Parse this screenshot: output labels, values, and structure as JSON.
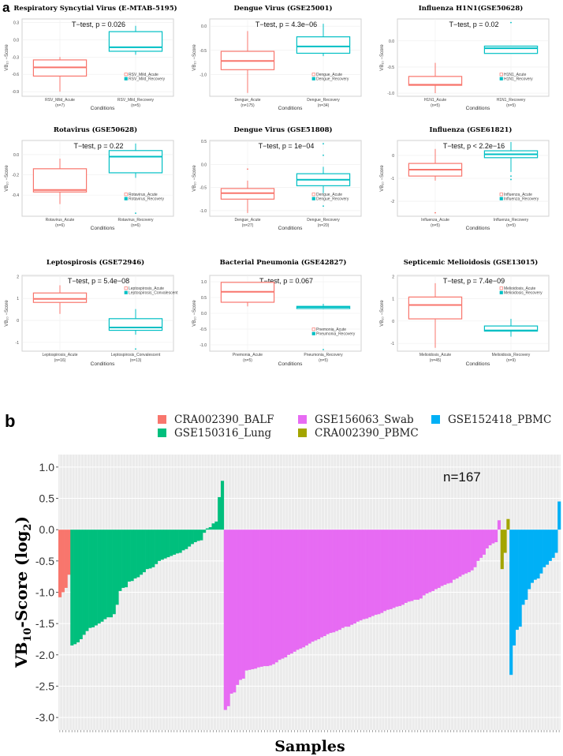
{
  "panel_labels": {
    "a": "a",
    "b": "b"
  },
  "colors": {
    "acute": "#F8766D",
    "recovery": "#00BFC4",
    "panel_bg": "#EBEBEB",
    "box_panel_bg": "#FFFFFF"
  },
  "chart_data": [
    {
      "type": "box",
      "title": "Respiratory Syncytial Virus (E-MTAB-5195)",
      "test": "T−test, p = 0.026",
      "ylabel": "VB₁₀ −Score",
      "xlabel": "Conditions",
      "yticks": [
        0.3,
        0.0,
        -0.3,
        -0.6,
        -0.9
      ],
      "ytick_labels": [
        "0.3",
        "0.0",
        "-0.3",
        "-0.6",
        "-0.9"
      ],
      "ylim": [
        -0.98,
        0.36
      ],
      "legend": "bottom-right",
      "groups": [
        {
          "name": "RSV_Mild_Acute",
          "n": "(n=7)",
          "min": -0.9,
          "q1": -0.63,
          "median": -0.48,
          "q3": -0.35,
          "max": -0.3,
          "outliers": []
        },
        {
          "name": "RSV_Mild_Recovery",
          "n": "(n=5)",
          "min": -0.26,
          "q1": -0.2,
          "median": -0.13,
          "q3": 0.14,
          "max": 0.24,
          "outliers": []
        }
      ]
    },
    {
      "type": "box",
      "title": "Dengue Virus (GSE25001)",
      "test": "T−test, p = 4.3e−06",
      "ylabel": "VB₁₀ −Score",
      "xlabel": "Conditions",
      "yticks": [
        0.0,
        -0.5,
        -1.0
      ],
      "ytick_labels": [
        "0.0",
        "-0.5",
        "-1.0"
      ],
      "ylim": [
        -1.45,
        0.15
      ],
      "legend": "bottom-right",
      "groups": [
        {
          "name": "Dengue_Acute",
          "n": "(n=175)",
          "min": -1.38,
          "q1": -0.9,
          "median": -0.72,
          "q3": -0.52,
          "max": -0.1,
          "outliers": []
        },
        {
          "name": "Dengue_Recovery",
          "n": "(n=34)",
          "min": -0.62,
          "q1": -0.56,
          "median": -0.42,
          "q3": -0.22,
          "max": 0.05,
          "outliers": []
        }
      ]
    },
    {
      "type": "box",
      "title": "Influenza H1N1(GSE50628)",
      "test": "T−test, p = 0.02",
      "ylabel": "VB₁₀ −Score",
      "xlabel": "Conditions",
      "yticks": [
        0.0,
        -0.5,
        -1.0
      ],
      "ytick_labels": [
        "0.0",
        "-0.5",
        "-1.0"
      ],
      "ylim": [
        -1.06,
        0.42
      ],
      "legend": "bottom-right",
      "groups": [
        {
          "name": "H1N1_Acute",
          "n": "(n=5)",
          "min": -1.0,
          "q1": -0.85,
          "median": -0.84,
          "q3": -0.68,
          "max": -0.42,
          "outliers": []
        },
        {
          "name": "H1N1_Recovery",
          "n": "(n=5)",
          "min": -0.24,
          "q1": -0.24,
          "median": -0.14,
          "q3": -0.1,
          "max": -0.1,
          "outliers": [
            0.35
          ]
        }
      ]
    },
    {
      "type": "box",
      "title": "Rotavirus (GSE50628)",
      "test": "T−test, p = 0.22",
      "ylabel": "VB₁₀ −Score",
      "xlabel": "Conditions",
      "yticks": [
        0.0,
        -0.2,
        -0.4
      ],
      "ytick_labels": [
        "0.0",
        "-0.2",
        "-0.4"
      ],
      "ylim": [
        -0.61,
        0.14
      ],
      "legend": "bottom-right",
      "groups": [
        {
          "name": "Rotavirus_Acute",
          "n": "(n=6)",
          "min": -0.49,
          "q1": -0.37,
          "median": -0.35,
          "q3": -0.14,
          "max": -0.04,
          "outliers": []
        },
        {
          "name": "Rotavirus_Recovery",
          "n": "(n=6)",
          "min": -0.23,
          "q1": -0.18,
          "median": -0.02,
          "q3": 0.04,
          "max": 0.11,
          "outliers": [
            -0.58
          ]
        }
      ]
    },
    {
      "type": "box",
      "title": "Dengue Virus (GSE51808)",
      "test": "T−test, p = 1e−04",
      "ylabel": "VB₁₀ −Score",
      "xlabel": "Conditions",
      "yticks": [
        0.5,
        0.0,
        -0.5,
        -1.0
      ],
      "ytick_labels": [
        "0.5",
        "0.0",
        "-0.5",
        "-1.0"
      ],
      "ylim": [
        -1.12,
        0.52
      ],
      "legend": "bottom-right",
      "groups": [
        {
          "name": "Dengue_Acute",
          "n": "(n=27)",
          "min": -1.05,
          "q1": -0.75,
          "median": -0.62,
          "q3": -0.52,
          "max": -0.35,
          "outliers": [
            -0.1
          ]
        },
        {
          "name": "Dengue_Recovery",
          "n": "(n=20)",
          "min": -0.62,
          "q1": -0.46,
          "median": -0.33,
          "q3": -0.2,
          "max": -0.05,
          "outliers": [
            0.2,
            0.45,
            -0.9
          ]
        }
      ]
    },
    {
      "type": "box",
      "title": "Influenza (GSE61821)",
      "test": "T−test, p < 2.2e−16",
      "ylabel": "VB₁₀ −Score",
      "xlabel": "Conditions",
      "yticks": [
        0,
        -1,
        -2
      ],
      "ytick_labels": [
        "0",
        "-1",
        "-2"
      ],
      "ylim": [
        -2.65,
        0.65
      ],
      "legend": "bottom-right",
      "groups": [
        {
          "name": "Influenza_Acute",
          "n": "(n=5)",
          "min": -1.1,
          "q1": -0.9,
          "median": -0.62,
          "q3": -0.35,
          "max": 0.28,
          "outliers": [
            -2.5
          ]
        },
        {
          "name": "Influenza_Recovery",
          "n": "(n=5)",
          "min": -0.72,
          "q1": -0.1,
          "median": 0.05,
          "q3": 0.2,
          "max": 0.58,
          "outliers": [
            -0.9,
            -1.05
          ]
        }
      ]
    },
    {
      "type": "box",
      "title": "Leptospirosis (GSE72946)",
      "test": "T−test, p = 5.4e−08",
      "ylabel": "VB₁₀ −Score",
      "xlabel": "Conditions",
      "yticks": [
        2,
        1,
        0,
        -1
      ],
      "ytick_labels": [
        "2",
        "1",
        "0",
        "-1"
      ],
      "ylim": [
        -1.4,
        2.05
      ],
      "legend": "top-right",
      "groups": [
        {
          "name": "Leptospirosis_Acute",
          "n": "(n=16)",
          "min": 0.3,
          "q1": 0.82,
          "median": 0.98,
          "q3": 1.25,
          "max": 1.6,
          "outliers": []
        },
        {
          "name": "Leptospirosis_Convalescent",
          "n": "(n=13)",
          "min": -0.65,
          "q1": -0.45,
          "median": -0.32,
          "q3": 0.08,
          "max": 0.52,
          "outliers": [
            -1.3
          ]
        }
      ]
    },
    {
      "type": "box",
      "title": "Bacterial Pneumonia (GSE42827)",
      "test": "T−test, p = 0.067",
      "ylabel": "VB₁₀ −Score",
      "xlabel": "Conditions",
      "yticks": [
        1.0,
        0.5,
        0.0,
        -0.5,
        -1.0
      ],
      "ytick_labels": [
        "1.0",
        "0.5",
        "0.0",
        "-0.5",
        "-1.0"
      ],
      "ylim": [
        -1.2,
        1.2
      ],
      "legend": "bottom-right",
      "groups": [
        {
          "name": "Pnemonia_Acute",
          "n": "(n=5)",
          "min": 0.22,
          "q1": 0.35,
          "median": 0.68,
          "q3": 0.98,
          "max": 0.98,
          "outliers": []
        },
        {
          "name": "Pneumonia_Recovery",
          "n": "(n=5)",
          "min": 0.13,
          "q1": 0.15,
          "median": 0.2,
          "q3": 0.22,
          "max": 0.3,
          "outliers": [
            -1.15
          ]
        }
      ]
    },
    {
      "type": "box",
      "title": "Septicemic Melioidosis (GSE13015)",
      "test": "T−test, p = 7.4e−09",
      "ylabel": "VB₁₀ −Score",
      "xlabel": "Conditions",
      "yticks": [
        2,
        1,
        0,
        -1
      ],
      "ytick_labels": [
        "2",
        "1",
        "0",
        "-1"
      ],
      "ylim": [
        -1.35,
        2.05
      ],
      "legend": "top-right",
      "groups": [
        {
          "name": "Melioidosis_Acute",
          "n": "(n=45)",
          "min": -1.2,
          "q1": 0.1,
          "median": 0.72,
          "q3": 1.08,
          "max": 1.7,
          "outliers": []
        },
        {
          "name": "Melioidosis_Recovery",
          "n": "(n=9)",
          "min": -0.7,
          "q1": -0.45,
          "median": -0.42,
          "q3": -0.22,
          "max": 0.1,
          "outliers": []
        }
      ]
    },
    {
      "type": "bar",
      "xlabel": "Samples",
      "ylabel_main": "VB",
      "ylabel_sub": "10",
      "ylabel_rest": "-Score (log",
      "ylabel_sub2": "2",
      "ylabel_end": ")",
      "annotation": "n=167",
      "ylim": [
        -3.2,
        1.2
      ],
      "yticks": [
        1.0,
        0.5,
        0.0,
        -0.5,
        -1.0,
        -1.5,
        -2.0,
        -2.5,
        -3.0
      ],
      "ytick_labels": [
        "1.0",
        "0.5",
        "0.0",
        "-0.5",
        "-1.0",
        "-1.5",
        "-2.0",
        "-2.5",
        "-3.0"
      ],
      "legend": "top",
      "legend_order": [
        "CRA002390_BALF",
        "GSE156063_Swab",
        "GSE152418_PBMC",
        "GSE150316_Lung",
        "CRA002390_PBMC"
      ],
      "series": [
        {
          "name": "CRA002390_BALF",
          "color": "#F8766D",
          "values": [
            -1.08,
            -1.0,
            -0.93,
            -0.72
          ]
        },
        {
          "name": "GSE150316_Lung",
          "color": "#00BF7D",
          "values": [
            -1.85,
            -1.83,
            -1.8,
            -1.75,
            -1.68,
            -1.62,
            -1.57,
            -1.56,
            -1.53,
            -1.5,
            -1.47,
            -1.43,
            -1.4,
            -1.4,
            -1.35,
            -1.2,
            -0.98,
            -0.93,
            -0.92,
            -0.83,
            -0.82,
            -0.78,
            -0.76,
            -0.72,
            -0.68,
            -0.63,
            -0.62,
            -0.6,
            -0.55,
            -0.5,
            -0.48,
            -0.46,
            -0.44,
            -0.42,
            -0.4,
            -0.38,
            -0.37,
            -0.33,
            -0.31,
            -0.27,
            -0.23,
            -0.2,
            -0.18,
            -0.17,
            -0.05,
            0.02,
            0.04,
            0.1,
            0.13,
            0.52,
            0.78
          ]
        },
        {
          "name": "GSE156063_Swab",
          "color": "#E76BF3",
          "values": [
            -2.88,
            -2.82,
            -2.62,
            -2.6,
            -2.48,
            -2.4,
            -2.38,
            -2.25,
            -2.24,
            -2.23,
            -2.22,
            -2.2,
            -2.19,
            -2.18,
            -2.18,
            -2.17,
            -2.15,
            -2.12,
            -2.08,
            -2.06,
            -2.04,
            -2.0,
            -1.98,
            -1.95,
            -1.92,
            -1.9,
            -1.88,
            -1.85,
            -1.82,
            -1.79,
            -1.77,
            -1.75,
            -1.72,
            -1.7,
            -1.67,
            -1.65,
            -1.64,
            -1.62,
            -1.6,
            -1.57,
            -1.55,
            -1.55,
            -1.52,
            -1.5,
            -1.47,
            -1.45,
            -1.43,
            -1.42,
            -1.4,
            -1.38,
            -1.36,
            -1.35,
            -1.33,
            -1.3,
            -1.28,
            -1.27,
            -1.25,
            -1.23,
            -1.22,
            -1.2,
            -1.17,
            -1.15,
            -1.14,
            -1.12,
            -1.12,
            -1.1,
            -1.05,
            -1.02,
            -1.0,
            -0.98,
            -0.95,
            -0.93,
            -0.9,
            -0.88,
            -0.86,
            -0.85,
            -0.8,
            -0.78,
            -0.75,
            -0.72,
            -0.7,
            -0.68,
            -0.65,
            -0.6,
            -0.5,
            -0.45,
            -0.4,
            -0.3,
            -0.25,
            -0.22,
            -0.2,
            0.15
          ]
        },
        {
          "name": "CRA002390_PBMC",
          "color": "#A3A500",
          "values": [
            -0.63,
            -0.37,
            0.17
          ]
        },
        {
          "name": "GSE152418_PBMC",
          "color": "#00B0F6",
          "values": [
            -2.32,
            -1.85,
            -1.6,
            -1.55,
            -1.2,
            -1.12,
            -0.95,
            -0.85,
            -0.8,
            -0.78,
            -0.7,
            -0.6,
            -0.56,
            -0.5,
            -0.45,
            -0.37,
            0.45
          ]
        }
      ]
    }
  ]
}
